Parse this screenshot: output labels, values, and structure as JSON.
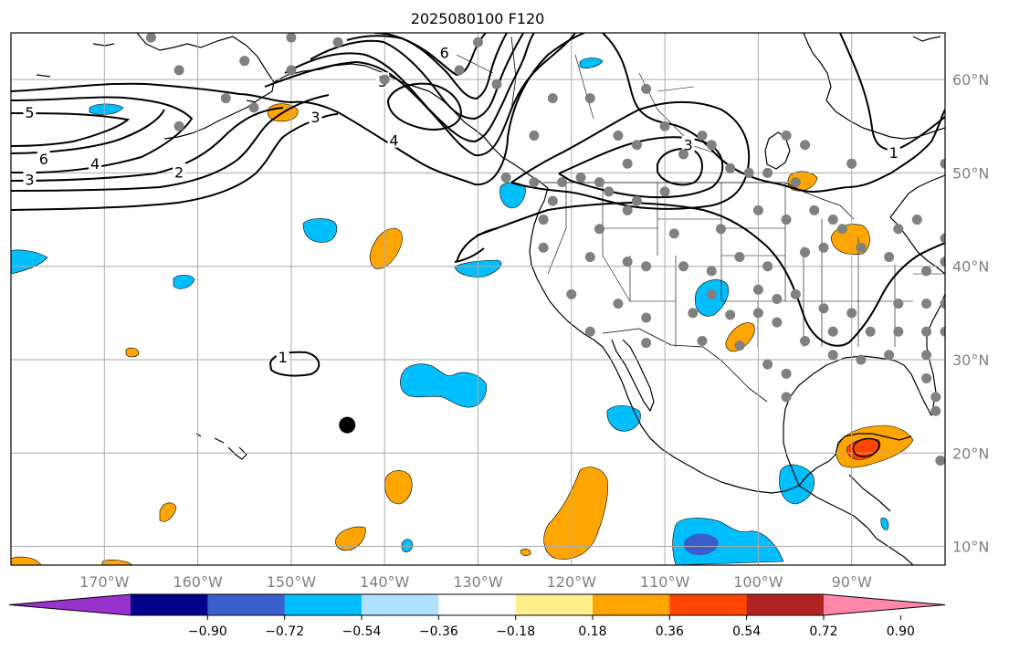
{
  "title": "2025080100 F120",
  "chart_data": {
    "type": "map",
    "projection": "plate-carree",
    "lon_range": [
      -180,
      -80
    ],
    "lat_range": [
      8,
      65
    ],
    "gridlines": true,
    "lon_ticks": [
      {
        "value": -170,
        "label": "170°W"
      },
      {
        "value": -160,
        "label": "160°W"
      },
      {
        "value": -150,
        "label": "150°W"
      },
      {
        "value": -140,
        "label": "140°W"
      },
      {
        "value": -130,
        "label": "130°W"
      },
      {
        "value": -120,
        "label": "120°W"
      },
      {
        "value": -110,
        "label": "110°W"
      },
      {
        "value": -100,
        "label": "100°W"
      },
      {
        "value": -90,
        "label": "90°W"
      }
    ],
    "lat_ticks": [
      {
        "value": 10,
        "label": "10°N"
      },
      {
        "value": 20,
        "label": "20°N"
      },
      {
        "value": 30,
        "label": "30°N"
      },
      {
        "value": 40,
        "label": "40°N"
      },
      {
        "value": 50,
        "label": "50°N"
      },
      {
        "value": 60,
        "label": "60°N"
      }
    ],
    "colorbar": {
      "extend": "both",
      "colors": [
        "#9a32cd",
        "#00008b",
        "#3a5fcd",
        "#00bfff",
        "#b0e2ff",
        "#ffffff",
        "#fff08c",
        "#ffa500",
        "#ff4500",
        "#b22222",
        "#ff88aa"
      ],
      "ticks": [
        "−0.90",
        "−0.72",
        "−0.54",
        "−0.36",
        "−0.18",
        "0.18",
        "0.36",
        "0.54",
        "0.72",
        "0.90"
      ]
    },
    "contour_labels": [
      {
        "text": "5",
        "lon": -178,
        "lat": 56.5
      },
      {
        "text": "6",
        "lon": -176.5,
        "lat": 51.5
      },
      {
        "text": "3",
        "lon": -178,
        "lat": 49.3
      },
      {
        "text": "4",
        "lon": -171,
        "lat": 51
      },
      {
        "text": "2",
        "lon": -162,
        "lat": 50.1
      },
      {
        "text": "3",
        "lon": -147.4,
        "lat": 56
      },
      {
        "text": "4",
        "lon": -139,
        "lat": 53.5
      },
      {
        "text": "5",
        "lon": -140.2,
        "lat": 59.8
      },
      {
        "text": "6",
        "lon": -133.6,
        "lat": 62.9
      },
      {
        "text": "3",
        "lon": -107.5,
        "lat": 53
      },
      {
        "text": "1",
        "lon": -85.5,
        "lat": 52.2
      },
      {
        "text": "1",
        "lon": -150.9,
        "lat": 30.3
      }
    ],
    "stations": [
      [
        -165,
        64.5
      ],
      [
        -150,
        64.5
      ],
      [
        -145,
        64
      ],
      [
        -155,
        62
      ],
      [
        -162,
        61
      ],
      [
        -150,
        61
      ],
      [
        -157,
        58
      ],
      [
        -154,
        57
      ],
      [
        -162,
        55
      ],
      [
        -130,
        64
      ],
      [
        -140,
        60
      ],
      [
        -132,
        61
      ],
      [
        -128,
        59.5
      ],
      [
        -122,
        58
      ],
      [
        -118,
        58
      ],
      [
        -112,
        59
      ],
      [
        -124,
        54
      ],
      [
        -115,
        54
      ],
      [
        -113,
        53
      ],
      [
        -110,
        55
      ],
      [
        -106,
        54
      ],
      [
        -105,
        53
      ],
      [
        -97,
        54
      ],
      [
        -95,
        53
      ],
      [
        -90,
        51
      ],
      [
        -80,
        51
      ],
      [
        -99,
        50
      ],
      [
        -101,
        50
      ],
      [
        -96,
        49
      ],
      [
        -103,
        50.5
      ],
      [
        -108,
        52
      ],
      [
        -114,
        51
      ],
      [
        -117,
        49
      ],
      [
        -119,
        49.5
      ],
      [
        -121,
        49
      ],
      [
        -124,
        49
      ],
      [
        -127,
        49.5
      ],
      [
        -122,
        47
      ],
      [
        -116,
        48
      ],
      [
        -113,
        47
      ],
      [
        -110,
        48
      ],
      [
        -123,
        45
      ],
      [
        -117,
        44
      ],
      [
        -114,
        46
      ],
      [
        -109,
        43.5
      ],
      [
        -104,
        44
      ],
      [
        -100,
        46
      ],
      [
        -97,
        45
      ],
      [
        -94,
        46
      ],
      [
        -92,
        45
      ],
      [
        -85,
        44
      ],
      [
        -83,
        45
      ],
      [
        -80,
        43
      ],
      [
        -123,
        42
      ],
      [
        -118,
        41
      ],
      [
        -112,
        40
      ],
      [
        -114,
        40.5
      ],
      [
        -108,
        40
      ],
      [
        -105,
        39.5
      ],
      [
        -102,
        41
      ],
      [
        -99,
        40
      ],
      [
        -95,
        41.5
      ],
      [
        -93,
        42
      ],
      [
        -91,
        44
      ],
      [
        -89,
        42
      ],
      [
        -86,
        41
      ],
      [
        -82,
        39.5
      ],
      [
        -80,
        40.5
      ],
      [
        -120,
        37
      ],
      [
        -115,
        36
      ],
      [
        -112,
        34.5
      ],
      [
        -105,
        37
      ],
      [
        -100,
        37.5
      ],
      [
        -98,
        36.5
      ],
      [
        -96,
        37
      ],
      [
        -93,
        35.5
      ],
      [
        -90,
        35
      ],
      [
        -85,
        36
      ],
      [
        -82,
        36
      ],
      [
        -80,
        36
      ],
      [
        -107,
        35
      ],
      [
        -103,
        34.8
      ],
      [
        -100,
        35
      ],
      [
        -98,
        34
      ],
      [
        -95,
        32
      ],
      [
        -92,
        33
      ],
      [
        -88,
        33
      ],
      [
        -85,
        33
      ],
      [
        -82,
        33
      ],
      [
        -80,
        33
      ],
      [
        -118,
        33
      ],
      [
        -112,
        31.8
      ],
      [
        -106,
        32
      ],
      [
        -102,
        31.5
      ],
      [
        -99,
        29.5
      ],
      [
        -97,
        28.5
      ],
      [
        -97,
        26
      ],
      [
        -92,
        30.5
      ],
      [
        -89,
        30
      ],
      [
        -86,
        30.5
      ],
      [
        -82,
        30.5
      ],
      [
        -82,
        28
      ],
      [
        -81,
        26
      ],
      [
        -81,
        24.5
      ],
      [
        -80.5,
        19.2
      ]
    ],
    "marker": {
      "lon": -144,
      "lat": 23
    }
  }
}
